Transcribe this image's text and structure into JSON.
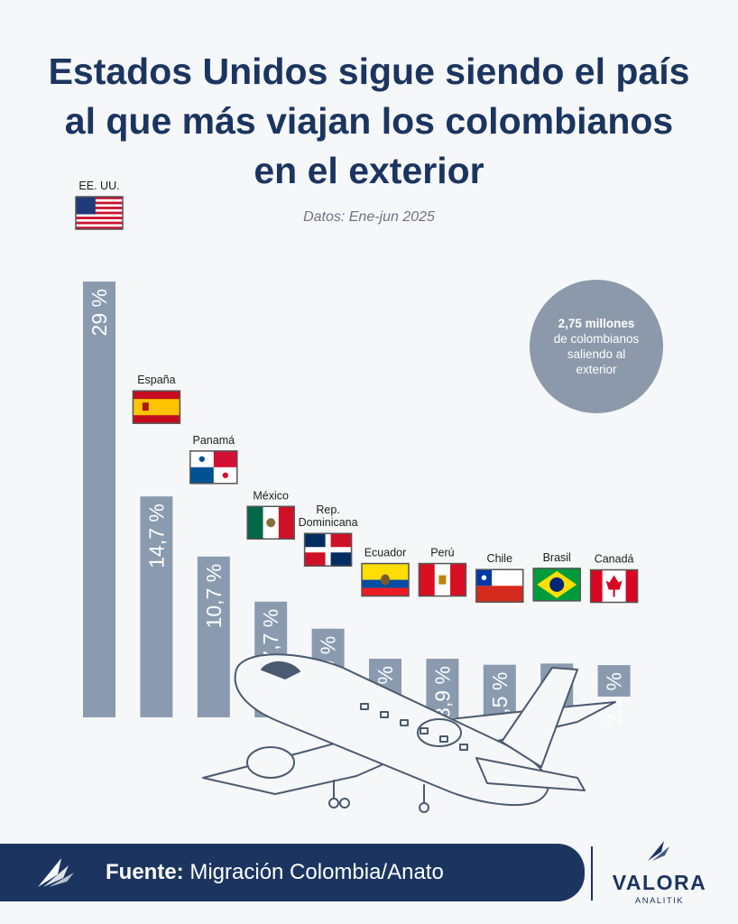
{
  "header": {
    "title_lines": [
      "Estados Unidos sigue siendo el país",
      "al que más viajan los colombianos",
      "en el exterior"
    ],
    "subtitle": "Datos: Ene-jun 2025"
  },
  "info_circle": {
    "strong": "2,75 millones",
    "rest": "de colombianos saliendo al exterior"
  },
  "chart_data": {
    "type": "bar",
    "title": "Estados Unidos sigue siendo el país al que más viajan los colombianos en el exterior",
    "subtitle": "Datos: Ene-jun 2025",
    "categories": [
      "EE. UU.",
      "España",
      "Panamá",
      "México",
      "Rep. Dominicana",
      "Ecuador",
      "Perú",
      "Chile",
      "Brasil",
      "Canadá"
    ],
    "values": [
      29,
      14.7,
      10.7,
      7.7,
      5.9,
      3.9,
      3.9,
      3.5,
      2.8,
      2.1
    ],
    "value_labels": [
      "29 %",
      "14,7 %",
      "10,7 %",
      "7,7 %",
      "5,9 %",
      "3,9 %",
      "3,9 %",
      "3,5 %",
      "2,8 %",
      "2,1 %"
    ],
    "unit": "%",
    "ylim": [
      0,
      29
    ],
    "grid": false,
    "bar_color": "#8a9bb0"
  },
  "footer": {
    "source_label": "Fuente:",
    "source_text": "Migración Colombia/Anato",
    "brand": "VALORA",
    "brand_sub": "ANALITIK"
  },
  "colors": {
    "title": "#1b3560",
    "bar": "#8a9bb0",
    "footer": "#1b3560",
    "circle": "#8b99ab"
  },
  "icons": [
    "flag-usa-icon",
    "flag-spain-icon",
    "flag-panama-icon",
    "flag-mexico-icon",
    "flag-dominican-republic-icon",
    "flag-ecuador-icon",
    "flag-peru-icon",
    "flag-chile-icon",
    "flag-brazil-icon",
    "flag-canada-icon",
    "airplane-illustration",
    "valora-logo-icon"
  ]
}
